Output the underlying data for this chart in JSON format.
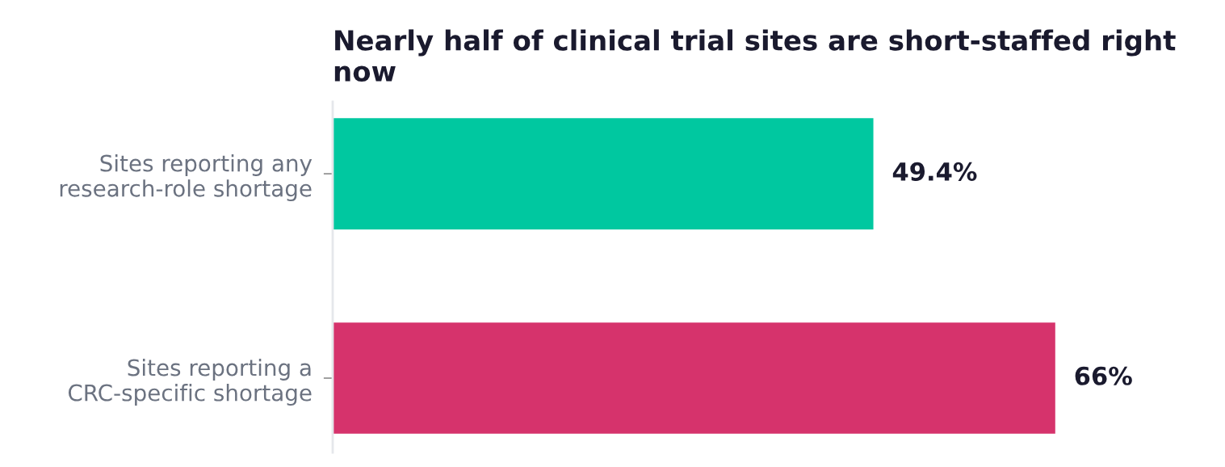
{
  "chart_data": {
    "type": "bar",
    "orientation": "horizontal",
    "title": "Nearly half of clinical trial sites are short-staffed right now",
    "categories": [
      "Sites reporting any\nresearch-role shortage",
      "Sites reporting a\nCRC-specific shortage"
    ],
    "values": [
      49.4,
      66
    ],
    "colors": [
      "#00c8a0",
      "#d6336c"
    ],
    "value_labels": [
      "49.4%",
      "66%"
    ],
    "grid": false,
    "legend": false
  }
}
